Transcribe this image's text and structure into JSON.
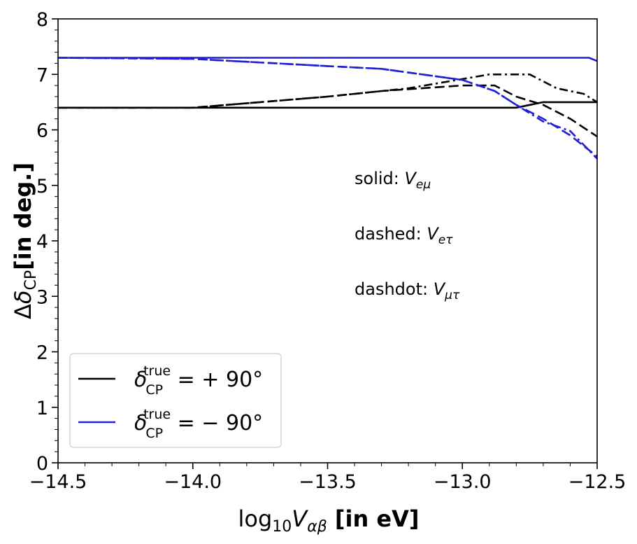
{
  "chart_data": {
    "type": "line",
    "xlabel": {
      "base": "log",
      "sub": "10",
      "var": "V",
      "varsub": "αβ",
      "unit": " [in eV]"
    },
    "ylabel": {
      "delta": "Δ",
      "var": "δ",
      "varsub": "CP",
      "unit": "[in deg.]"
    },
    "xlim": [
      -14.5,
      -12.5
    ],
    "ylim": [
      0,
      8
    ],
    "xticks": [
      -14.5,
      -14.0,
      -13.5,
      -13.0,
      -12.5
    ],
    "xtick_labels": [
      "−14.5",
      "−14.0",
      "−13.5",
      "−13.0",
      "−12.5"
    ],
    "yticks": [
      0,
      1,
      2,
      3,
      4,
      5,
      6,
      7,
      8
    ],
    "ytick_labels": [
      "0",
      "1",
      "2",
      "3",
      "4",
      "5",
      "6",
      "7",
      "8"
    ],
    "grid": false,
    "legend_placement": "lower-left",
    "legend": [
      {
        "color": "#000000",
        "pre": "δ",
        "sub": "CP",
        "sup": "true",
        "post": " = + 90°"
      },
      {
        "color": "#1f1fd6",
        "pre": "δ",
        "sub": "CP",
        "sup": "true",
        "post": " = − 90°"
      }
    ],
    "annotations": [
      {
        "prefix": "solid: ",
        "var": "V",
        "sub": "eμ"
      },
      {
        "prefix": "dashed: ",
        "var": "V",
        "sub": "eτ"
      },
      {
        "prefix": "dashdot: ",
        "var": "V",
        "sub": "μτ"
      }
    ],
    "series": [
      {
        "coupling": "eμ",
        "style": "solid",
        "color": "#000000",
        "x": [
          -14.5,
          -14.0,
          -13.5,
          -13.0,
          -12.8,
          -12.7,
          -12.6,
          -12.5
        ],
        "y": [
          6.4,
          6.4,
          6.4,
          6.4,
          6.4,
          6.5,
          6.5,
          6.5
        ]
      },
      {
        "coupling": "eτ",
        "style": "dashed",
        "color": "#000000",
        "x": [
          -14.5,
          -14.0,
          -13.5,
          -13.3,
          -13.0,
          -12.88,
          -12.8,
          -12.7,
          -12.6,
          -12.5
        ],
        "y": [
          6.4,
          6.4,
          6.6,
          6.7,
          6.8,
          6.8,
          6.6,
          6.45,
          6.2,
          5.88
        ]
      },
      {
        "coupling": "μτ",
        "style": "dashdot",
        "color": "#000000",
        "x": [
          -14.5,
          -14.0,
          -13.5,
          -13.2,
          -12.9,
          -12.8,
          -12.75,
          -12.65,
          -12.55,
          -12.5
        ],
        "y": [
          6.4,
          6.4,
          6.6,
          6.75,
          7.0,
          7.0,
          7.0,
          6.75,
          6.65,
          6.5
        ]
      },
      {
        "coupling": "eμ",
        "style": "solid",
        "color": "#1f1fd6",
        "x": [
          -14.5,
          -14.0,
          -13.5,
          -13.0,
          -12.8,
          -12.6,
          -12.53,
          -12.5
        ],
        "y": [
          7.3,
          7.3,
          7.3,
          7.3,
          7.3,
          7.3,
          7.3,
          7.24
        ]
      },
      {
        "coupling": "eτ",
        "style": "dashed",
        "color": "#1f1fd6",
        "x": [
          -14.5,
          -14.0,
          -13.5,
          -13.3,
          -13.0,
          -12.88,
          -12.8,
          -12.7,
          -12.6,
          -12.5
        ],
        "y": [
          7.3,
          7.28,
          7.15,
          7.1,
          6.9,
          6.7,
          6.45,
          6.2,
          5.9,
          5.52
        ]
      },
      {
        "coupling": "μτ",
        "style": "dashdot",
        "color": "#1f1fd6",
        "x": [
          -14.5,
          -14.0,
          -13.5,
          -13.3,
          -13.0,
          -12.88,
          -12.8,
          -12.7,
          -12.6,
          -12.5
        ],
        "y": [
          7.3,
          7.28,
          7.15,
          7.1,
          6.9,
          6.7,
          6.45,
          6.15,
          5.98,
          5.48
        ]
      }
    ]
  }
}
